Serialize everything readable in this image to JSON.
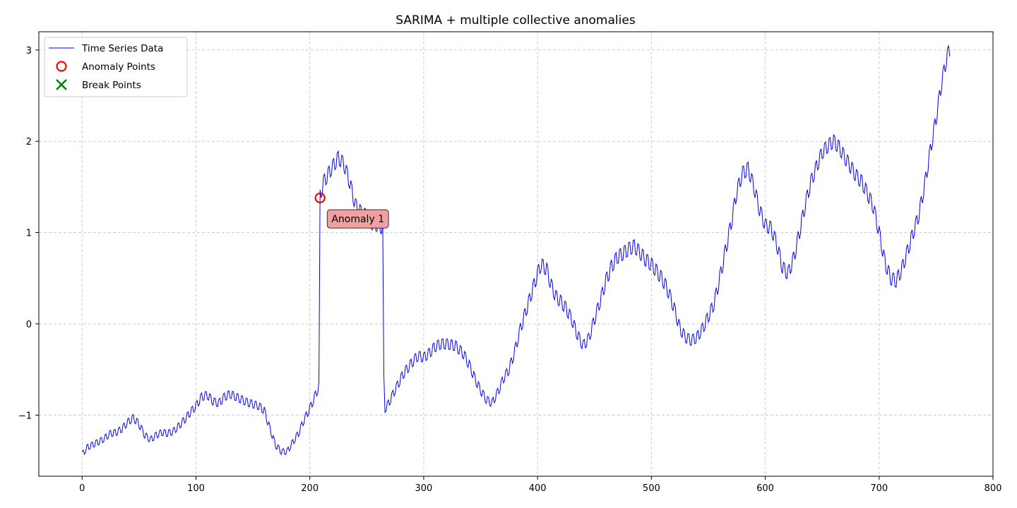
{
  "chart_data": {
    "type": "line",
    "title": "SARIMA + multiple collective anomalies",
    "xlabel": "",
    "ylabel": "",
    "xlim": [
      -38,
      800
    ],
    "ylim": [
      -1.67,
      3.2
    ],
    "xticks": [
      0,
      100,
      200,
      300,
      400,
      500,
      600,
      700,
      800
    ],
    "xtick_labels": [
      "0",
      "100",
      "200",
      "300",
      "400",
      "500",
      "600",
      "700",
      "800"
    ],
    "yticks": [
      -1,
      0,
      1,
      2,
      3
    ],
    "ytick_labels": [
      "−1",
      "0",
      "1",
      "2",
      "3"
    ],
    "grid": true,
    "legend_position": "upper-left",
    "legend": [
      {
        "label": "Time Series Data",
        "marker": "line",
        "color": "#0000ff"
      },
      {
        "label": "Anomaly Points",
        "marker": "circle",
        "color": "#ff0000"
      },
      {
        "label": "Break Points",
        "marker": "x",
        "color": "#008000"
      }
    ],
    "series": [
      {
        "name": "Time Series Data",
        "color": "#0000ff",
        "seasonal_amplitude": 0.07,
        "x": [
          0,
          5,
          10,
          18,
          25,
          30,
          35,
          40,
          45,
          50,
          55,
          60,
          65,
          70,
          75,
          80,
          85,
          90,
          95,
          100,
          105,
          110,
          115,
          120,
          125,
          130,
          135,
          140,
          145,
          150,
          155,
          160,
          165,
          170,
          175,
          180,
          185,
          190,
          195,
          200,
          205,
          208,
          209,
          212,
          218,
          225,
          230,
          235,
          240,
          245,
          250,
          255,
          260,
          264,
          265,
          266,
          268,
          275,
          282,
          290,
          295,
          300,
          305,
          310,
          315,
          320,
          328,
          335,
          340,
          345,
          350,
          355,
          360,
          365,
          370,
          375,
          380,
          385,
          390,
          395,
          400,
          403,
          408,
          412,
          416,
          420,
          425,
          430,
          435,
          440,
          445,
          450,
          455,
          460,
          465,
          470,
          475,
          480,
          485,
          490,
          495,
          500,
          505,
          510,
          515,
          520,
          525,
          530,
          535,
          540,
          545,
          550,
          555,
          560,
          565,
          570,
          575,
          580,
          585,
          590,
          595,
          600,
          605,
          610,
          615,
          620,
          625,
          630,
          635,
          640,
          645,
          650,
          655,
          660,
          665,
          670,
          675,
          680,
          685,
          690,
          695,
          700,
          705,
          710,
          715,
          720,
          725,
          730,
          735,
          740,
          745,
          750,
          755,
          760,
          762
        ],
        "y": [
          -1.43,
          -1.35,
          -1.32,
          -1.27,
          -1.2,
          -1.19,
          -1.15,
          -1.08,
          -1.03,
          -1.1,
          -1.22,
          -1.27,
          -1.22,
          -1.19,
          -1.2,
          -1.18,
          -1.12,
          -1.05,
          -0.97,
          -0.9,
          -0.8,
          -0.78,
          -0.85,
          -0.87,
          -0.8,
          -0.77,
          -0.8,
          -0.83,
          -0.86,
          -0.88,
          -0.9,
          -0.95,
          -1.15,
          -1.33,
          -1.4,
          -1.4,
          -1.3,
          -1.2,
          -1.05,
          -0.93,
          -0.78,
          -0.68,
          1.4,
          1.55,
          1.68,
          1.82,
          1.75,
          1.55,
          1.3,
          1.22,
          1.18,
          1.1,
          1.08,
          1.05,
          -0.6,
          -0.93,
          -0.9,
          -0.72,
          -0.55,
          -0.42,
          -0.35,
          -0.37,
          -0.32,
          -0.25,
          -0.22,
          -0.22,
          -0.24,
          -0.33,
          -0.45,
          -0.6,
          -0.73,
          -0.83,
          -0.87,
          -0.75,
          -0.6,
          -0.5,
          -0.3,
          -0.05,
          0.15,
          0.35,
          0.55,
          0.65,
          0.6,
          0.42,
          0.3,
          0.25,
          0.17,
          0.05,
          -0.12,
          -0.24,
          -0.16,
          0.05,
          0.25,
          0.47,
          0.63,
          0.73,
          0.77,
          0.82,
          0.85,
          0.78,
          0.7,
          0.65,
          0.57,
          0.48,
          0.35,
          0.17,
          -0.05,
          -0.15,
          -0.18,
          -0.15,
          -0.05,
          0.08,
          0.22,
          0.5,
          0.8,
          1.1,
          1.45,
          1.65,
          1.7,
          1.5,
          1.25,
          1.08,
          1.05,
          0.88,
          0.62,
          0.55,
          0.72,
          1.0,
          1.3,
          1.55,
          1.72,
          1.88,
          1.95,
          2.0,
          1.93,
          1.82,
          1.72,
          1.62,
          1.55,
          1.42,
          1.28,
          1.0,
          0.68,
          0.5,
          0.47,
          0.6,
          0.8,
          1.0,
          1.2,
          1.52,
          1.9,
          2.25,
          2.65,
          2.95,
          3.0
        ]
      }
    ],
    "anomaly_points": [
      {
        "x": 209,
        "y": 1.38
      }
    ],
    "break_points": [],
    "annotations": [
      {
        "text": "Anomaly 1",
        "x": 219,
        "y": 1.15
      }
    ]
  }
}
